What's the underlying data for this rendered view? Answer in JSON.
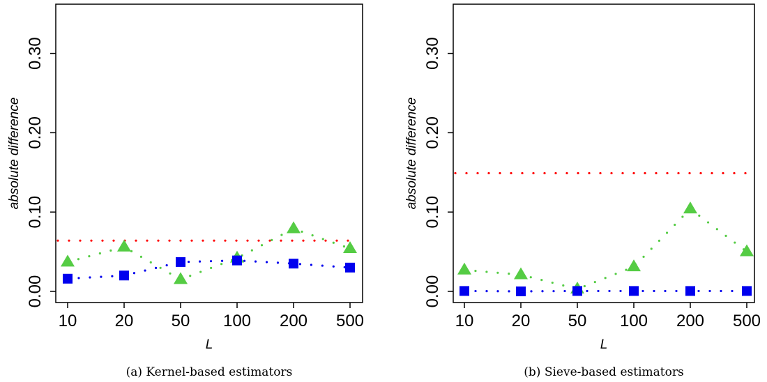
{
  "chart_data": [
    {
      "type": "scatter",
      "caption": "(a) Kernel-based estimators",
      "xlabel": "L",
      "ylabel": "absolute difference",
      "x_tick_labels": [
        "10",
        "20",
        "50",
        "100",
        "200",
        "500"
      ],
      "y_tick_labels": [
        "0.00",
        "0.10",
        "0.20",
        "0.30"
      ],
      "y_ticks": [
        0.0,
        0.1,
        0.2,
        0.3
      ],
      "ylim": [
        -0.015,
        0.36
      ],
      "grid": false,
      "series": [
        {
          "color": "#ff0000",
          "marker": "none",
          "values": [
            0.064,
            0.064,
            0.064,
            0.064,
            0.064,
            0.064
          ]
        },
        {
          "color": "#55cc44",
          "marker": "triangle",
          "values": [
            0.037,
            0.056,
            0.015,
            0.042,
            0.079,
            0.054
          ]
        },
        {
          "color": "#0000ee",
          "marker": "square",
          "values": [
            0.016,
            0.02,
            0.037,
            0.039,
            0.035,
            0.03
          ]
        }
      ]
    },
    {
      "type": "scatter",
      "caption": "(b) Sieve-based estimators",
      "xlabel": "L",
      "ylabel": "absolute difference",
      "x_tick_labels": [
        "10",
        "20",
        "50",
        "100",
        "200",
        "500"
      ],
      "y_tick_labels": [
        "0.00",
        "0.10",
        "0.20",
        "0.30"
      ],
      "y_ticks": [
        0.0,
        0.1,
        0.2,
        0.3
      ],
      "ylim": [
        -0.015,
        0.36
      ],
      "grid": false,
      "series": [
        {
          "color": "#ff0000",
          "marker": "none",
          "values": [
            0.149,
            0.149,
            0.149,
            0.149,
            0.149,
            0.149
          ]
        },
        {
          "color": "#55cc44",
          "marker": "triangle",
          "values": [
            0.027,
            0.021,
            0.003,
            0.031,
            0.104,
            0.05
          ]
        },
        {
          "color": "#0000ee",
          "marker": "square",
          "values": [
            0.0005,
            0.0,
            0.0005,
            0.0005,
            0.0005,
            0.0005
          ]
        }
      ]
    }
  ]
}
